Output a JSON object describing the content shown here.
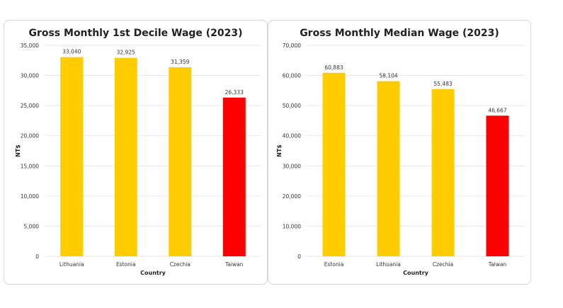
{
  "chart_data": [
    {
      "type": "bar",
      "title": "Gross Monthly 1st Decile Wage (2023)",
      "xlabel": "Country",
      "ylabel": "NT$",
      "categories": [
        "Lithuania",
        "Estonia",
        "Czechia",
        "Taiwan"
      ],
      "values": [
        33040,
        32925,
        31359,
        26333
      ],
      "data_labels": [
        "33,040",
        "32,925",
        "31,359",
        "26,333"
      ],
      "ylim": [
        0,
        35000
      ],
      "yticks": [
        0,
        5000,
        10000,
        15000,
        20000,
        25000,
        30000,
        35000
      ],
      "ytick_labels": [
        "0",
        "5,000",
        "10,000",
        "15,000",
        "20,000",
        "25,000",
        "30,000",
        "35,000"
      ],
      "colors": [
        "#FFCC00",
        "#FFCC00",
        "#FFCC00",
        "#FF0000"
      ],
      "grid": true
    },
    {
      "type": "bar",
      "title": "Gross Monthly Median Wage (2023)",
      "xlabel": "Country",
      "ylabel": "NT$",
      "categories": [
        "Estonia",
        "Lithuania",
        "Czechia",
        "Taiwan"
      ],
      "values": [
        60883,
        58104,
        55483,
        46667
      ],
      "data_labels": [
        "60,883",
        "58,104",
        "55,483",
        "46,667"
      ],
      "ylim": [
        0,
        70000
      ],
      "yticks": [
        0,
        10000,
        20000,
        30000,
        40000,
        50000,
        60000,
        70000
      ],
      "ytick_labels": [
        "0",
        "10,000",
        "20,000",
        "30,000",
        "40,000",
        "50,000",
        "60,000",
        "70,000"
      ],
      "colors": [
        "#FFCC00",
        "#FFCC00",
        "#FFCC00",
        "#FF0000"
      ],
      "grid": true
    }
  ]
}
